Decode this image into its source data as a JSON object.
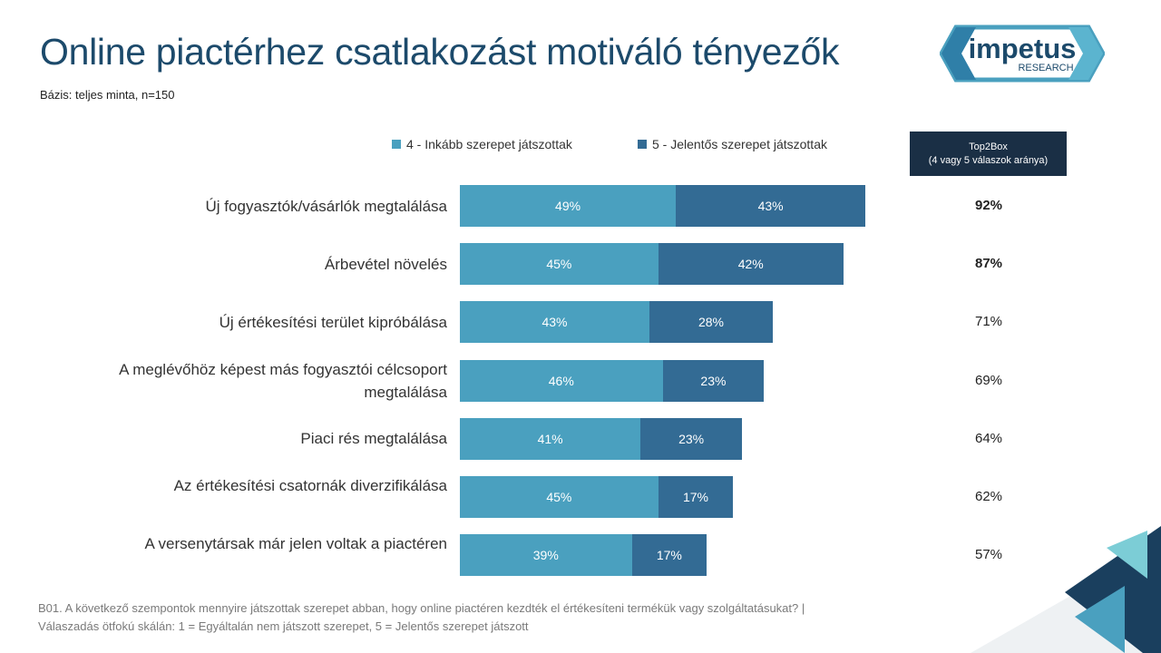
{
  "title": "Online piactérhez csatlakozást motiváló tényezők",
  "subtitle": "Bázis: teljes minta, n=150",
  "logo": {
    "text": "impetus",
    "subtext": "RESEARCH"
  },
  "top2box_header": {
    "line1": "Top2Box",
    "line2": "(4 vagy 5 válaszok aránya)"
  },
  "footnote": {
    "line1": "B01. A következő szempontok mennyire játszottak szerepet abban, hogy online piactéren kezdték el értékesíteni termékük vagy szolgáltatásukat? |",
    "line2": "Válaszadás ötfokú skálán: 1 = Egyáltalán nem játszott szerepet, 5 = Jelentős szerepet játszott"
  },
  "colors": {
    "series4": "#4aa0bf",
    "series5": "#336b94",
    "title": "#1c4a6b"
  },
  "chart_data": {
    "type": "bar",
    "orientation": "horizontal",
    "stacked": true,
    "categories": [
      "Új fogyasztók/vásárlók megtalálása",
      "Árbevétel növelés",
      "Új értékesítési terület kipróbálása",
      "A meglévőhöz képest más fogyasztói célcsoport megtalálása",
      "Piaci rés megtalálása",
      "Az értékesítési csatornák diverzifikálása",
      "A versenytársak már jelen voltak a piactéren"
    ],
    "series": [
      {
        "name": "4 - Inkább szerepet játszottak",
        "values": [
          49,
          45,
          43,
          46,
          41,
          45,
          39
        ]
      },
      {
        "name": "5 - Jelentős szerepet játszottak",
        "values": [
          43,
          42,
          28,
          23,
          23,
          17,
          17
        ]
      }
    ],
    "top2box": [
      92,
      87,
      71,
      69,
      64,
      62,
      57
    ],
    "top2box_bold": [
      true,
      true,
      false,
      false,
      false,
      false,
      false
    ],
    "value_suffix": "%",
    "legend_position": "top",
    "xlim": [
      0,
      100
    ]
  }
}
